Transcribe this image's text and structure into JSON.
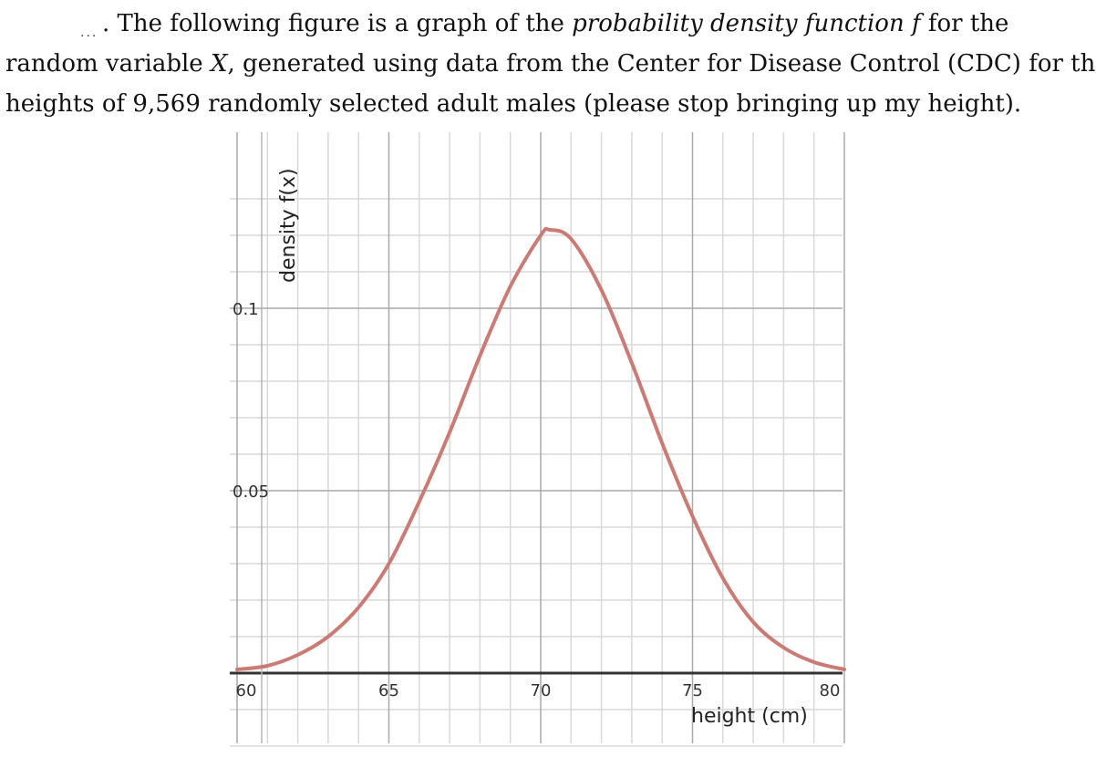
{
  "problem_text": {
    "marker": "...",
    "line1_a": ". The following figure is a graph of the ",
    "line1_em1": "probability density function f",
    "line1_b": " for the",
    "line2_a": "random variable ",
    "line2_var": "X",
    "line2_b": ", generated using data from the Center for Disease Control (CDC) for the",
    "line3": "heights of 9,569 randomly selected adult males (please stop bringing up my height)."
  },
  "chart_data": {
    "type": "line",
    "title": "",
    "xlabel": "height (cm)",
    "ylabel": "density f(x)",
    "xlim": [
      60,
      80
    ],
    "ylim": [
      0,
      0.13
    ],
    "x_ticks": [
      60,
      65,
      70,
      75,
      80
    ],
    "y_ticks": [
      0.05,
      0.1
    ],
    "y_tick_labels": [
      "0.05",
      "0.1"
    ],
    "grid": true,
    "series": [
      {
        "color": "#cc7a74",
        "x": [
          60,
          61,
          62,
          63,
          64,
          65,
          66,
          67,
          68,
          69,
          70,
          70.3,
          71,
          72,
          73,
          74,
          75,
          76,
          77,
          78,
          79,
          80
        ],
        "y": [
          0.001,
          0.002,
          0.005,
          0.01,
          0.018,
          0.03,
          0.047,
          0.066,
          0.087,
          0.106,
          0.12,
          0.1215,
          0.119,
          0.105,
          0.085,
          0.063,
          0.043,
          0.026,
          0.014,
          0.007,
          0.003,
          0.001
        ]
      }
    ]
  }
}
